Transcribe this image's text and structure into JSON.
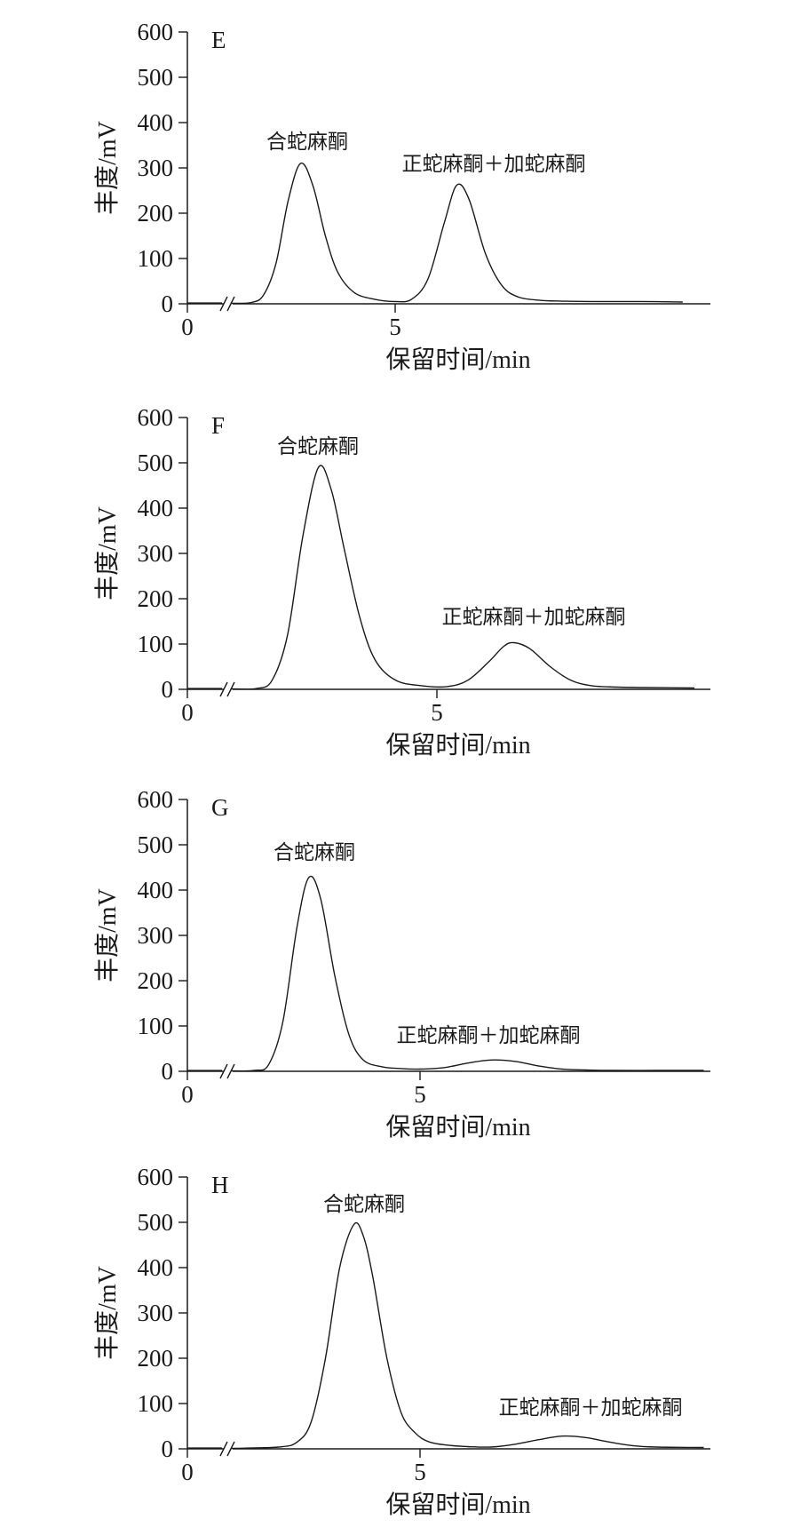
{
  "chart_data": [
    {
      "type": "line",
      "panel_label": "E",
      "xlabel": "保留时间/min",
      "ylabel": "丰度/mV",
      "ylim": [
        0,
        600
      ],
      "yticks": [
        0,
        100,
        200,
        300,
        400,
        500,
        600
      ],
      "xticks": [
        0,
        5
      ],
      "axis_break": true,
      "series": [
        {
          "x": [
            1.0,
            1.5,
            1.8,
            2.1,
            2.4,
            2.7,
            3.0,
            3.3,
            3.6,
            4.0,
            4.5,
            5.0,
            5.4,
            5.8,
            6.2,
            6.5,
            6.8,
            7.2,
            7.6,
            8.0,
            8.5,
            9.0,
            10.0,
            11.0,
            12.0,
            13.0
          ],
          "values": [
            1,
            3,
            20,
            90,
            230,
            310,
            260,
            150,
            70,
            25,
            10,
            5,
            10,
            55,
            180,
            262,
            230,
            110,
            40,
            15,
            8,
            6,
            5,
            5,
            4,
            4
          ]
        }
      ],
      "annotations": [
        {
          "text": "合蛇麻酮",
          "x": 2.7,
          "y": 310
        },
        {
          "text": "正蛇麻酮＋加蛇麻酮",
          "x": 6.5,
          "y": 262
        }
      ]
    },
    {
      "type": "line",
      "panel_label": "F",
      "xlabel": "保留时间/min",
      "ylabel": "丰度/mV",
      "ylim": [
        0,
        600
      ],
      "yticks": [
        0,
        100,
        200,
        300,
        400,
        500,
        600
      ],
      "xticks": [
        0,
        5
      ],
      "axis_break": true,
      "series": [
        {
          "x": [
            1.0,
            1.5,
            1.8,
            2.1,
            2.4,
            2.7,
            2.95,
            3.2,
            3.5,
            3.8,
            4.2,
            4.7,
            5.2,
            5.6,
            6.0,
            6.3,
            6.5,
            6.8,
            7.2,
            7.6,
            8.0,
            8.5,
            9.0,
            10.0,
            11.0,
            12.0
          ],
          "values": [
            1,
            2,
            20,
            120,
            340,
            490,
            440,
            310,
            160,
            65,
            20,
            8,
            6,
            20,
            60,
            95,
            103,
            90,
            50,
            20,
            8,
            5,
            4,
            3,
            3,
            3
          ]
        }
      ],
      "annotations": [
        {
          "text": "合蛇麻酮",
          "x": 2.7,
          "y": 490
        },
        {
          "text": "正蛇麻酮＋加蛇麻酮",
          "x": 6.5,
          "y": 103
        }
      ]
    },
    {
      "type": "line",
      "panel_label": "G",
      "xlabel": "保留时间/min",
      "ylabel": "丰度/mV",
      "ylim": [
        0,
        600
      ],
      "yticks": [
        0,
        100,
        200,
        300,
        400,
        500,
        600
      ],
      "xticks": [
        0,
        5
      ],
      "axis_break": true,
      "series": [
        {
          "x": [
            1.0,
            1.5,
            1.8,
            2.1,
            2.4,
            2.65,
            2.9,
            3.2,
            3.5,
            3.8,
            4.2,
            4.6,
            5.0,
            5.5,
            6.0,
            6.5,
            7.0,
            7.5,
            8.0,
            8.5,
            9.0,
            10.0,
            11.0,
            12.0,
            13.0
          ],
          "values": [
            1,
            2,
            15,
            110,
            320,
            428,
            380,
            210,
            80,
            25,
            10,
            6,
            5,
            8,
            18,
            25,
            22,
            12,
            5,
            3,
            2,
            2,
            2,
            2,
            2
          ]
        }
      ],
      "annotations": [
        {
          "text": "合蛇麻酮",
          "x": 2.65,
          "y": 428
        },
        {
          "text": "正蛇麻酮＋加蛇麻酮",
          "x": 6.5,
          "y": 25
        }
      ]
    },
    {
      "type": "line",
      "panel_label": "H",
      "xlabel": "保留时间/min",
      "ylabel": "丰度/mV",
      "ylim": [
        0,
        600
      ],
      "yticks": [
        0,
        100,
        200,
        300,
        400,
        500,
        600
      ],
      "xticks": [
        0,
        5
      ],
      "axis_break": true,
      "series": [
        {
          "x": [
            1.0,
            2.0,
            2.4,
            2.7,
            3.0,
            3.3,
            3.6,
            3.8,
            4.0,
            4.3,
            4.6,
            4.9,
            5.2,
            5.6,
            6.0,
            6.5,
            7.0,
            7.5,
            8.0,
            8.5,
            9.0,
            9.5,
            10.0,
            11.0,
            12.0
          ],
          "values": [
            1,
            4,
            15,
            60,
            200,
            400,
            495,
            470,
            380,
            200,
            80,
            35,
            15,
            8,
            5,
            4,
            10,
            20,
            28,
            25,
            15,
            7,
            4,
            3,
            3
          ]
        }
      ],
      "annotations": [
        {
          "text": "合蛇麻酮",
          "x": 3.8,
          "y": 495
        },
        {
          "text": "正蛇麻酮＋加蛇麻酮",
          "x": 8.0,
          "y": 28
        }
      ]
    }
  ]
}
